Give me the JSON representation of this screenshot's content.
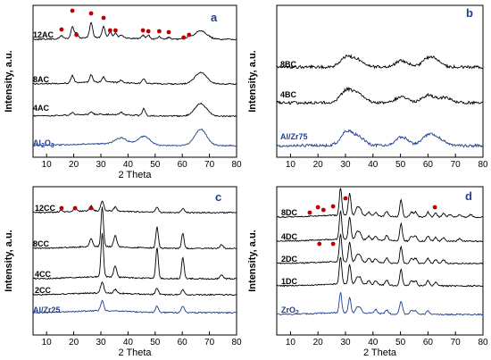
{
  "figure": {
    "ylabel": "Intensity, a.u.",
    "xlabel": "2 Theta"
  },
  "chart_data": [
    {
      "panel": "a",
      "type": "line",
      "xlim": [
        5,
        80
      ],
      "xticks": [
        "10",
        "20",
        "30",
        "40",
        "50",
        "60",
        "70",
        "80"
      ],
      "xlabel": "2 Theta",
      "ylabel": "Intensity, a.u.",
      "grid": false,
      "series": [
        {
          "name": "12AC",
          "color": "#000000",
          "offset": 3,
          "peaks": [
            [
              15.5,
              0.25
            ],
            [
              19.5,
              0.9
            ],
            [
              21.0,
              0.4
            ],
            [
              26.4,
              1.2
            ],
            [
              31.0,
              0.85
            ],
            [
              33.4,
              0.45
            ],
            [
              35.4,
              0.4
            ],
            [
              37.5,
              0.25
            ],
            [
              45.5,
              0.3
            ],
            [
              47.5,
              0.3
            ],
            [
              51.5,
              0.2
            ],
            [
              55.0,
              0.15
            ],
            [
              60.5,
              0.2
            ],
            [
              62.5,
              0.2
            ],
            [
              66.8,
              0.7
            ]
          ]
        },
        {
          "name": "8AC",
          "color": "#000000",
          "offset": 2,
          "peaks": [
            [
              19.5,
              0.6
            ],
            [
              26.4,
              0.6
            ],
            [
              31.0,
              0.4
            ],
            [
              37.5,
              0.2
            ],
            [
              45.8,
              0.4
            ],
            [
              66.8,
              0.9
            ]
          ]
        },
        {
          "name": "4AC",
          "color": "#000000",
          "offset": 1,
          "peaks": [
            [
              19.5,
              0.2
            ],
            [
              26.4,
              0.2
            ],
            [
              37.5,
              0.2
            ],
            [
              45.8,
              0.55
            ],
            [
              66.8,
              1.0
            ]
          ]
        },
        {
          "name": "Al2O3",
          "color": "#1f3f8f",
          "offset": 0,
          "peaks": [
            [
              37.5,
              0.5
            ],
            [
              45.8,
              0.7
            ],
            [
              66.8,
              1.3
            ]
          ]
        }
      ],
      "markers": [
        15.5,
        19.5,
        21.0,
        26.4,
        31.0,
        33.4,
        35.4,
        45.5,
        47.5,
        51.5,
        55.0,
        60.5,
        62.5
      ]
    },
    {
      "panel": "b",
      "type": "line",
      "xlim": [
        5,
        80
      ],
      "xticks": [
        "10",
        "20",
        "30",
        "40",
        "50",
        "60",
        "70",
        "80"
      ],
      "xlabel": "",
      "ylabel": "Intensity, a.u.",
      "grid": false,
      "series": [
        {
          "name": "8BC",
          "color": "#000000",
          "offset": 2,
          "peaks": [
            [
              30.5,
              0.8
            ],
            [
              35.0,
              0.5
            ],
            [
              50.5,
              0.5
            ],
            [
              60.0,
              0.6
            ],
            [
              63.0,
              0.4
            ]
          ]
        },
        {
          "name": "4BC",
          "color": "#000000",
          "offset": 1,
          "peaks": [
            [
              30.5,
              1.0
            ],
            [
              35.0,
              0.6
            ],
            [
              50.5,
              0.5
            ],
            [
              60.0,
              0.6
            ],
            [
              66.0,
              0.4
            ]
          ]
        },
        {
          "name": "Al/Zr75",
          "color": "#1f3f8f",
          "offset": 0,
          "peaks": [
            [
              30.5,
              1.1
            ],
            [
              35.0,
              0.6
            ],
            [
              50.5,
              0.7
            ],
            [
              60.0,
              0.8
            ],
            [
              64.0,
              0.5
            ]
          ]
        }
      ],
      "markers": []
    },
    {
      "panel": "c",
      "type": "line",
      "xlim": [
        5,
        80
      ],
      "xticks": [
        "10",
        "20",
        "30",
        "40",
        "50",
        "60",
        "70",
        "80"
      ],
      "xlabel": "2 Theta",
      "ylabel": "Intensity, a.u.",
      "grid": false,
      "series": [
        {
          "name": "12CC",
          "color": "#000000",
          "offset": 4,
          "peaks": [
            [
              15.5,
              0.15
            ],
            [
              20.5,
              0.3
            ],
            [
              26.4,
              0.4
            ],
            [
              30.5,
              0.8
            ],
            [
              35.3,
              0.3
            ],
            [
              50.7,
              0.4
            ],
            [
              60.2,
              0.3
            ]
          ]
        },
        {
          "name": "8CC",
          "color": "#000000",
          "offset": 3,
          "peaks": [
            [
              26.4,
              0.6
            ],
            [
              30.5,
              3.2
            ],
            [
              35.3,
              0.9
            ],
            [
              50.7,
              1.7
            ],
            [
              60.2,
              1.2
            ],
            [
              74.5,
              0.3
            ]
          ]
        },
        {
          "name": "4CC",
          "color": "#000000",
          "offset": 1.6,
          "peaks": [
            [
              30.5,
              3.5
            ],
            [
              35.3,
              0.9
            ],
            [
              50.7,
              2.5
            ],
            [
              60.2,
              1.7
            ],
            [
              74.5,
              0.3
            ]
          ]
        },
        {
          "name": "2CC",
          "color": "#000000",
          "offset": 1,
          "peaks": [
            [
              30.5,
              0.9
            ],
            [
              35.3,
              0.3
            ],
            [
              50.7,
              0.5
            ],
            [
              60.2,
              0.4
            ]
          ]
        },
        {
          "name": "Al/Zr25",
          "color": "#1f3f8f",
          "offset": 0,
          "peaks": [
            [
              30.5,
              0.8
            ],
            [
              50.7,
              0.5
            ],
            [
              60.2,
              0.5
            ]
          ]
        }
      ],
      "markers": [
        15.5,
        20.5,
        26.4
      ]
    },
    {
      "panel": "d",
      "type": "line",
      "xlim": [
        5,
        80
      ],
      "xticks": [
        "10",
        "20",
        "30",
        "40",
        "50",
        "60",
        "70",
        "80"
      ],
      "xlabel": "2 Theta",
      "ylabel": "Intensity, a.u.",
      "grid": false,
      "series": [
        {
          "name": "8DC",
          "color": "#000000",
          "offset": 4,
          "peaks": [
            [
              28.2,
              2.2
            ],
            [
              31.5,
              1.8
            ],
            [
              34.2,
              0.6
            ],
            [
              35.3,
              0.5
            ],
            [
              38.5,
              0.3
            ],
            [
              41.0,
              0.3
            ],
            [
              45.0,
              0.4
            ],
            [
              50.2,
              1.4
            ],
            [
              54.0,
              0.4
            ],
            [
              55.5,
              0.4
            ],
            [
              60.0,
              0.4
            ],
            [
              62.8,
              0.3
            ],
            [
              65.7,
              0.3
            ],
            [
              68.0,
              0.2
            ],
            [
              71.5,
              0.2
            ],
            [
              75.5,
              0.2
            ]
          ]
        },
        {
          "name": "4DC",
          "color": "#000000",
          "offset": 3,
          "peaks": [
            [
              28.2,
              2.3
            ],
            [
              31.5,
              1.8
            ],
            [
              34.2,
              0.6
            ],
            [
              35.3,
              0.5
            ],
            [
              38.5,
              0.3
            ],
            [
              41.0,
              0.3
            ],
            [
              45.0,
              0.4
            ],
            [
              50.2,
              1.4
            ],
            [
              54.0,
              0.4
            ],
            [
              55.5,
              0.4
            ],
            [
              60.0,
              0.4
            ],
            [
              62.8,
              0.3
            ],
            [
              65.7,
              0.3
            ],
            [
              71.5,
              0.2
            ]
          ]
        },
        {
          "name": "2DC",
          "color": "#000000",
          "offset": 2,
          "peaks": [
            [
              28.2,
              2.2
            ],
            [
              31.5,
              1.6
            ],
            [
              34.2,
              0.5
            ],
            [
              35.3,
              0.5
            ],
            [
              38.5,
              0.3
            ],
            [
              41.0,
              0.3
            ],
            [
              45.0,
              0.4
            ],
            [
              50.2,
              1.3
            ],
            [
              54.0,
              0.4
            ],
            [
              55.5,
              0.4
            ],
            [
              60.0,
              0.4
            ],
            [
              62.8,
              0.3
            ],
            [
              65.7,
              0.3
            ]
          ]
        },
        {
          "name": "1DC",
          "color": "#000000",
          "offset": 1,
          "peaks": [
            [
              28.2,
              2.2
            ],
            [
              31.5,
              1.6
            ],
            [
              34.2,
              0.5
            ],
            [
              35.3,
              0.5
            ],
            [
              38.5,
              0.3
            ],
            [
              41.0,
              0.3
            ],
            [
              45.0,
              0.4
            ],
            [
              50.2,
              1.3
            ],
            [
              54.0,
              0.4
            ],
            [
              55.5,
              0.4
            ],
            [
              60.0,
              0.4
            ],
            [
              62.8,
              0.3
            ]
          ]
        },
        {
          "name": "ZrO2",
          "color": "#1f3f8f",
          "offset": 0,
          "peaks": [
            [
              28.2,
              1.6
            ],
            [
              31.5,
              1.2
            ],
            [
              34.2,
              0.4
            ],
            [
              35.3,
              0.4
            ],
            [
              41.0,
              0.3
            ],
            [
              45.0,
              0.3
            ],
            [
              50.2,
              1.0
            ],
            [
              54.0,
              0.3
            ],
            [
              55.5,
              0.3
            ],
            [
              60.0,
              0.3
            ]
          ]
        }
      ],
      "markers": [
        17.0,
        20.0,
        22.0,
        25.5,
        30.0,
        62.5
      ],
      "markers_4dc": [
        20.5,
        25.5
      ]
    }
  ]
}
